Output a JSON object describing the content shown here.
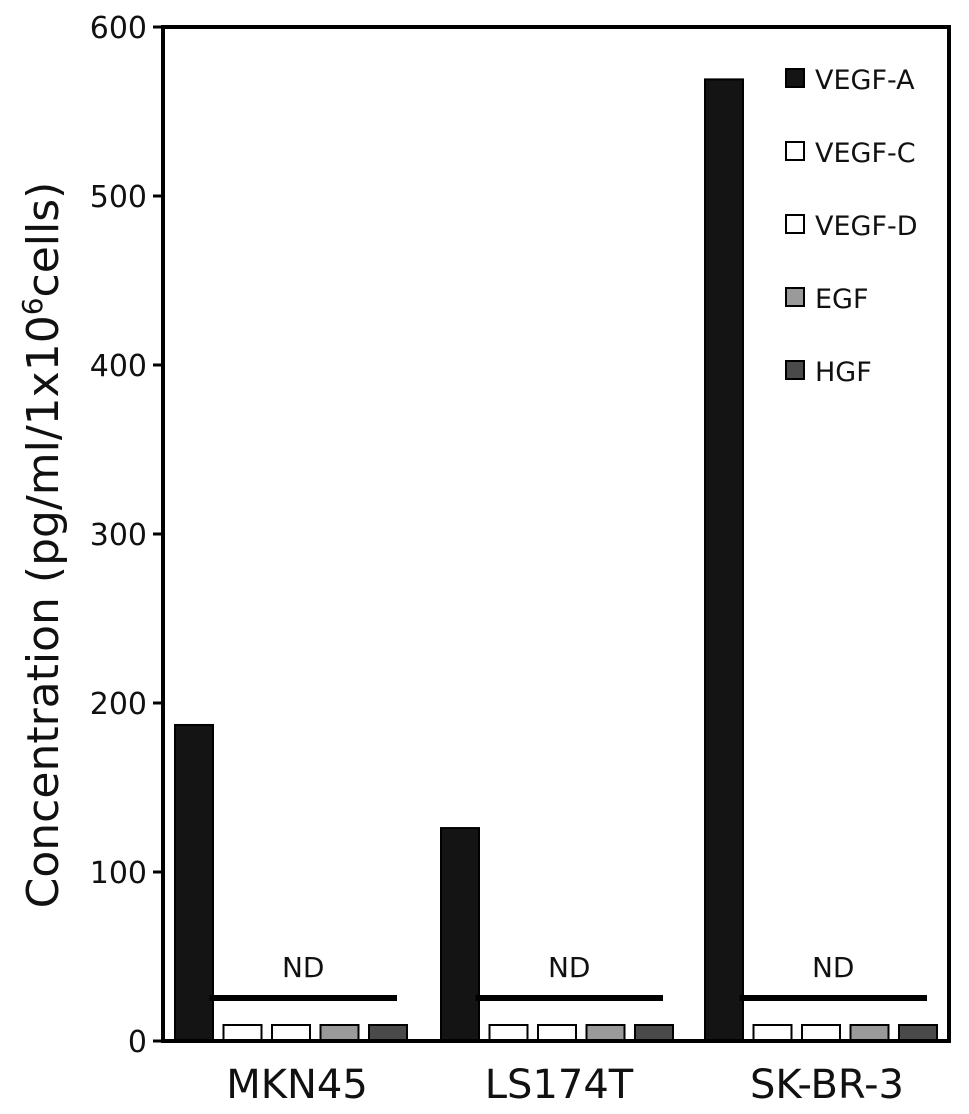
{
  "chart_data": {
    "type": "bar",
    "categories": [
      "MKN45",
      "LS174T",
      "SK-BR-3"
    ],
    "series": [
      {
        "name": "VEGF-A",
        "values": [
          187,
          126,
          569
        ],
        "color": "#141414"
      },
      {
        "name": "VEGF-C",
        "values": [
          0,
          0,
          0
        ],
        "color": "#ffffff"
      },
      {
        "name": "VEGF-D",
        "values": [
          0,
          0,
          0
        ],
        "color": "#ffffff"
      },
      {
        "name": "EGF",
        "values": [
          0,
          0,
          0
        ],
        "color": "#9a9a9a"
      },
      {
        "name": "HGF",
        "values": [
          0,
          0,
          0
        ],
        "color": "#4a4a4a"
      }
    ],
    "ylabel": "Concentration (pg/ml/1x10",
    "ylabel_sup": "6",
    "ylabel_end": "cells)",
    "ylim": [
      0,
      600
    ],
    "yticks": [
      "0",
      "100",
      "200",
      "300",
      "400",
      "500",
      "600"
    ],
    "annotations": [
      "ND",
      "ND",
      "ND"
    ],
    "legend_position": "top-right",
    "grid": false
  }
}
